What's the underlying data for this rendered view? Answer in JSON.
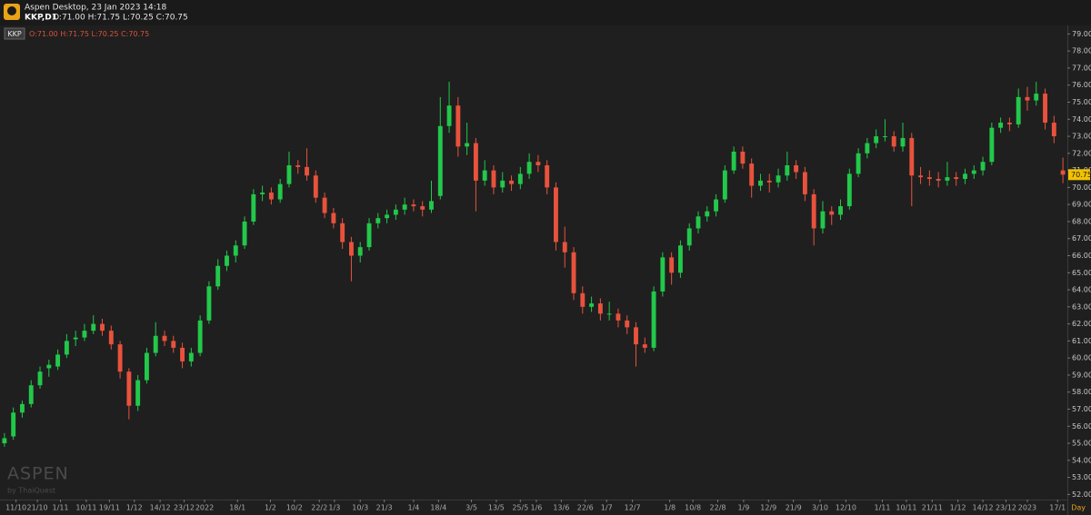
{
  "window": {
    "title": "Aspen Desktop, 23 Jan 2023 14:18",
    "symbol": "KKP,D1",
    "ohlc": "O:71.00 H:71.75 L:70.25 C:70.75"
  },
  "legend": {
    "symbol": "KKP",
    "ohlc": "O:71.00 H:71.75 L:70.25 C:70.75"
  },
  "watermark": {
    "brand": "ASPEN",
    "by": "by ThaiQuest"
  },
  "timeframe": "Day",
  "chart_data": {
    "type": "candlestick",
    "up_color": "#22c84a",
    "down_color": "#e8523c",
    "grid": false,
    "open": [
      55.0,
      55.4,
      56.8,
      57.3,
      58.4,
      59.4,
      59.5,
      60.2,
      61.1,
      61.2,
      61.6,
      62,
      61.6,
      60.8,
      59.2,
      57.2,
      58.7,
      60.3,
      61.3,
      61,
      60.6,
      59.8,
      60.3,
      62.2,
      64.2,
      65.4,
      66,
      66.6,
      68,
      69.6,
      69.7,
      69.3,
      70.2,
      71.3,
      71.2,
      70.7,
      69.4,
      68.5,
      67.9,
      66.8,
      66,
      66.5,
      67.9,
      68.2,
      68.4,
      68.7,
      69,
      68.9,
      68.7,
      69.5,
      73.6,
      74.8,
      72.4,
      72.6,
      70.4,
      71,
      70,
      70.4,
      70.2,
      70.8,
      71.5,
      71.3,
      70,
      66.8,
      66.2,
      63.8,
      63,
      63.2,
      62.6,
      62.6,
      62.2,
      61.8,
      60.8,
      60.6,
      63.9,
      65.9,
      65,
      66.6,
      67.6,
      68.3,
      68.6,
      69.3,
      71,
      72.1,
      71.4,
      70.1,
      70.4,
      70.3,
      70.7,
      71.3,
      70.9,
      69.6,
      67.6,
      68.6,
      68.4,
      68.9,
      70.8,
      72,
      72.6,
      73,
      73,
      72.4,
      72.9,
      70.7,
      70.6,
      70.5,
      70.4,
      70.6,
      70.5,
      70.8,
      71,
      71.5,
      73.5,
      73.8,
      73.7,
      75.3,
      75.1,
      75.5,
      73.8,
      71
    ],
    "high": [
      55.6,
      57.1,
      57.5,
      58.7,
      59.5,
      59.9,
      60.5,
      61.4,
      61.6,
      62,
      62.5,
      62.3,
      61.9,
      61,
      59.4,
      59,
      60.6,
      62.1,
      61.6,
      61.3,
      60.9,
      60.6,
      62.5,
      64.5,
      65.8,
      66.3,
      66.9,
      68.3,
      69.9,
      70.1,
      70,
      70.5,
      72.1,
      71.6,
      72.3,
      71,
      69.7,
      68.8,
      68.2,
      67.1,
      66.8,
      68.2,
      68.5,
      68.7,
      69,
      69.4,
      69.3,
      69.2,
      70.4,
      75.3,
      76.2,
      75.3,
      73.8,
      72.9,
      71.6,
      71.3,
      70.9,
      70.7,
      71.2,
      72,
      71.9,
      71.6,
      70.3,
      67.7,
      66.5,
      64.2,
      63.6,
      63.5,
      63.3,
      62.9,
      62.5,
      62.1,
      61.2,
      64.2,
      66.2,
      66.2,
      66.9,
      67.9,
      68.6,
      68.9,
      69.6,
      71.3,
      72.4,
      72.4,
      71.7,
      70.8,
      70.8,
      71.1,
      72.1,
      71.6,
      71.2,
      69.9,
      69.2,
      68.9,
      69.3,
      71.1,
      72.3,
      72.9,
      73.4,
      74,
      73.3,
      73.8,
      73.2,
      71.2,
      71,
      70.9,
      71.5,
      70.9,
      71.1,
      71.3,
      71.8,
      73.8,
      74.1,
      74.1,
      75.8,
      75.9,
      76.2,
      75.8,
      74.2,
      71.75
    ],
    "low": [
      54.8,
      55.2,
      56.5,
      57.1,
      58.2,
      58.9,
      59.3,
      60,
      60.7,
      61,
      61.4,
      61.3,
      60.5,
      58.8,
      56.4,
      56.9,
      58.5,
      60.1,
      60.7,
      60.3,
      59.4,
      59.5,
      60.1,
      62,
      64,
      65.1,
      65.6,
      66.4,
      67.8,
      69.2,
      69,
      69.1,
      70,
      70.8,
      70.4,
      69.1,
      68.2,
      67.6,
      66.4,
      64.5,
      65.6,
      66.3,
      67.6,
      67.9,
      68.1,
      68.4,
      68.6,
      68.3,
      68.5,
      69.3,
      73.2,
      71.8,
      71.9,
      68.6,
      70.1,
      69.6,
      69.7,
      69.8,
      69.9,
      70.5,
      70.9,
      69.6,
      66.3,
      65.3,
      63.4,
      62.6,
      62.7,
      62.2,
      62.2,
      61.8,
      61.4,
      59.5,
      60.3,
      60.4,
      63.6,
      64.3,
      64.7,
      66.3,
      67.3,
      68,
      68.3,
      69.1,
      70.8,
      71.1,
      69.4,
      69.8,
      69.7,
      70,
      70.4,
      70.5,
      69.2,
      66.6,
      67.3,
      67.8,
      68.1,
      68.7,
      70.6,
      71.7,
      72.3,
      72.7,
      72.1,
      72.1,
      68.9,
      70.2,
      70.1,
      70,
      70.1,
      70.1,
      70.2,
      70.5,
      70.7,
      71.3,
      73.2,
      73.3,
      73.5,
      74.5,
      74.8,
      73.4,
      72.6,
      70.25
    ],
    "close": [
      55.3,
      56.8,
      57.3,
      58.4,
      59.2,
      59.6,
      60.2,
      61,
      61.2,
      61.6,
      62,
      61.6,
      60.8,
      59.2,
      57.2,
      58.7,
      60.3,
      61.3,
      61,
      60.6,
      59.8,
      60.3,
      62.2,
      64.2,
      65.4,
      66,
      66.6,
      68,
      69.6,
      69.7,
      69.3,
      70.2,
      71.3,
      71.2,
      70.7,
      69.4,
      68.5,
      67.9,
      66.8,
      66,
      66.5,
      67.9,
      68.2,
      68.4,
      68.7,
      69,
      68.9,
      68.7,
      69.2,
      73.6,
      74.8,
      72.4,
      72.6,
      70.4,
      71,
      70,
      70.4,
      70.2,
      70.8,
      71.5,
      71.3,
      70,
      66.8,
      66.2,
      63.8,
      63,
      63.2,
      62.6,
      62.6,
      62.2,
      61.8,
      60.8,
      60.6,
      63.9,
      65.9,
      65,
      66.6,
      67.6,
      68.3,
      68.6,
      69.3,
      71,
      72.1,
      71.4,
      70.1,
      70.4,
      70.3,
      70.7,
      71.3,
      70.9,
      69.6,
      67.6,
      68.6,
      68.4,
      68.9,
      70.8,
      72,
      72.6,
      73,
      73,
      72.4,
      72.9,
      70.7,
      70.6,
      70.5,
      70.4,
      70.6,
      70.5,
      70.8,
      71,
      71.5,
      73.5,
      73.8,
      73.7,
      75.3,
      75.1,
      75.5,
      73.8,
      73,
      70.75
    ],
    "xlim": [
      -0.5,
      119.5
    ],
    "xticks": [
      {
        "value": 1.3,
        "label": "11/10"
      },
      {
        "value": 3.7,
        "label": "21/10"
      },
      {
        "value": 6.3,
        "label": "1/11"
      },
      {
        "value": 9.2,
        "label": "10/11"
      },
      {
        "value": 11.8,
        "label": "19/11"
      },
      {
        "value": 14.6,
        "label": "1/12"
      },
      {
        "value": 17.5,
        "label": "14/12"
      },
      {
        "value": 20.2,
        "label": "23/12"
      },
      {
        "value": 22.5,
        "label": "2022"
      },
      {
        "value": 26.2,
        "label": "18/1"
      },
      {
        "value": 29.9,
        "label": "1/2"
      },
      {
        "value": 32.6,
        "label": "10/2"
      },
      {
        "value": 35.4,
        "label": "22/2"
      },
      {
        "value": 37.1,
        "label": "1/3"
      },
      {
        "value": 40.0,
        "label": "10/3"
      },
      {
        "value": 42.7,
        "label": "21/3"
      },
      {
        "value": 46.0,
        "label": "1/4"
      },
      {
        "value": 48.8,
        "label": "18/4"
      },
      {
        "value": 52.5,
        "label": "3/5"
      },
      {
        "value": 55.3,
        "label": "13/5"
      },
      {
        "value": 58.0,
        "label": "25/5"
      },
      {
        "value": 59.8,
        "label": "1/6"
      },
      {
        "value": 62.6,
        "label": "13/6"
      },
      {
        "value": 65.3,
        "label": "22/6"
      },
      {
        "value": 67.7,
        "label": "1/7"
      },
      {
        "value": 70.6,
        "label": "12/7"
      },
      {
        "value": 74.8,
        "label": "1/8"
      },
      {
        "value": 77.4,
        "label": "10/8"
      },
      {
        "value": 80.2,
        "label": "22/8"
      },
      {
        "value": 83.1,
        "label": "1/9"
      },
      {
        "value": 85.9,
        "label": "12/9"
      },
      {
        "value": 88.7,
        "label": "21/9"
      },
      {
        "value": 91.7,
        "label": "3/10"
      },
      {
        "value": 94.6,
        "label": "12/10"
      },
      {
        "value": 98.7,
        "label": "1/11"
      },
      {
        "value": 101.4,
        "label": "10/11"
      },
      {
        "value": 104.3,
        "label": "21/11"
      },
      {
        "value": 107.2,
        "label": "1/12"
      },
      {
        "value": 110.0,
        "label": "14/12"
      },
      {
        "value": 112.6,
        "label": "23/12"
      },
      {
        "value": 115.0,
        "label": "2023"
      },
      {
        "value": 118.4,
        "label": "17/1"
      }
    ],
    "ylim": [
      51.7,
      79.5
    ],
    "yticks": [
      {
        "value": 52,
        "label": "52.00"
      },
      {
        "value": 53,
        "label": "53.00"
      },
      {
        "value": 54,
        "label": "54.00"
      },
      {
        "value": 55,
        "label": "55.00"
      },
      {
        "value": 56,
        "label": "56.00"
      },
      {
        "value": 57,
        "label": "57.00"
      },
      {
        "value": 58,
        "label": "58.00"
      },
      {
        "value": 59,
        "label": "59.00"
      },
      {
        "value": 60,
        "label": "60.00"
      },
      {
        "value": 61,
        "label": "61.00"
      },
      {
        "value": 62,
        "label": "62.00"
      },
      {
        "value": 63,
        "label": "63.00"
      },
      {
        "value": 64,
        "label": "64.00"
      },
      {
        "value": 65,
        "label": "65.00"
      },
      {
        "value": 66,
        "label": "66.00"
      },
      {
        "value": 67,
        "label": "67.00"
      },
      {
        "value": 68,
        "label": "68.00"
      },
      {
        "value": 69,
        "label": "69.00"
      },
      {
        "value": 70,
        "label": "70.00"
      },
      {
        "value": 71,
        "label": "71.00"
      },
      {
        "value": 72,
        "label": "72.00"
      },
      {
        "value": 73,
        "label": "73.00"
      },
      {
        "value": 74,
        "label": "74.00"
      },
      {
        "value": 75,
        "label": "75.00"
      },
      {
        "value": 76,
        "label": "76.00"
      },
      {
        "value": 77,
        "label": "77.00"
      },
      {
        "value": 78,
        "label": "78.00"
      },
      {
        "value": 79,
        "label": "79.00"
      }
    ],
    "last_price": {
      "value": 70.75,
      "label": "70.75"
    },
    "last_price_color": "#f2c200"
  }
}
